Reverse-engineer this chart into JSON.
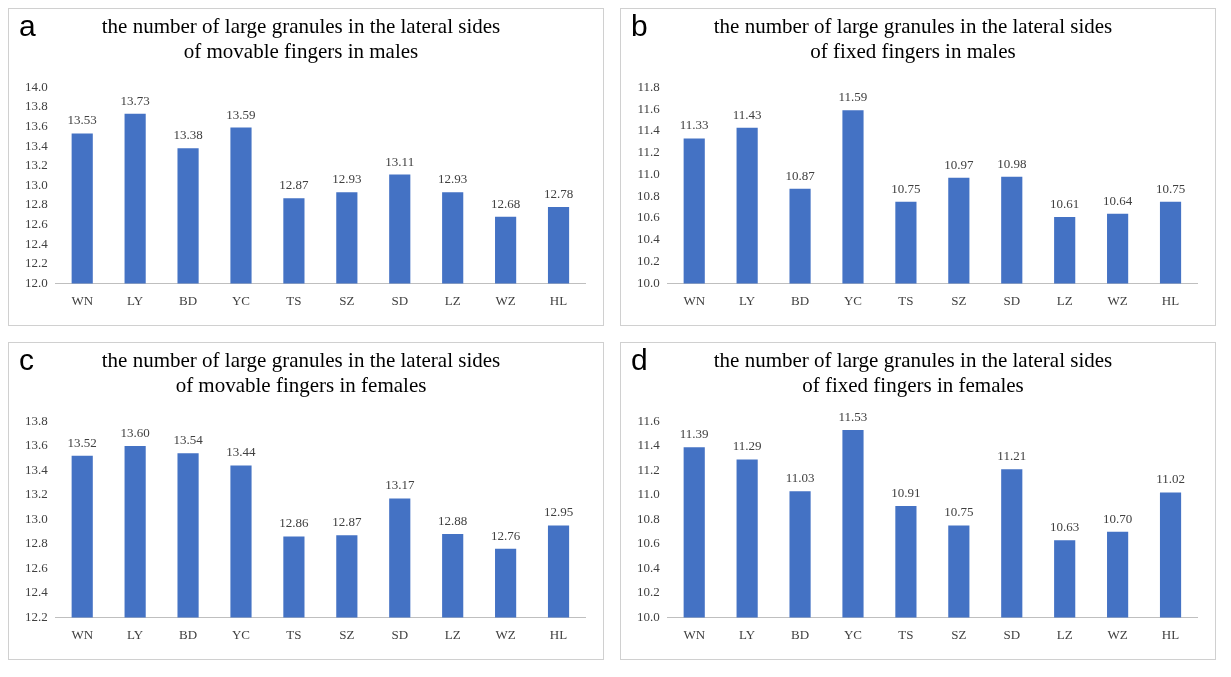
{
  "chart_data": [
    {
      "type": "bar",
      "title": "the number of large granules in the lateral sides\nof movable fingers in males",
      "annotations": [
        "a"
      ],
      "categories": [
        "WN",
        "LY",
        "BD",
        "YC",
        "TS",
        "SZ",
        "SD",
        "LZ",
        "WZ",
        "HL"
      ],
      "color": "#4472c4",
      "values": [
        13.53,
        13.73,
        13.38,
        13.59,
        12.87,
        12.93,
        13.11,
        12.93,
        12.68,
        12.78
      ],
      "value_labels": [
        "13.53",
        "13.73",
        "13.38",
        "13.59",
        "12.87",
        "12.93",
        "13.11",
        "12.93",
        "12.68",
        "12.78"
      ],
      "ylim": [
        12,
        14
      ],
      "yticks": [
        {
          "value": 12,
          "label": "12.0"
        },
        12.2,
        12.4,
        12.6,
        12.8,
        {
          "value": 13,
          "label": "13.0"
        },
        13.2,
        13.4,
        13.6,
        13.8,
        {
          "value": 14,
          "label": "14.0"
        }
      ],
      "grid": false,
      "legend": false
    },
    {
      "type": "bar",
      "title": "the number of large granules in the lateral sides\nof fixed fingers in males",
      "annotations": [
        "b"
      ],
      "categories": [
        "WN",
        "LY",
        "BD",
        "YC",
        "TS",
        "SZ",
        "SD",
        "LZ",
        "WZ",
        "HL"
      ],
      "color": "#4472c4",
      "values": [
        11.33,
        11.43,
        10.87,
        11.59,
        10.75,
        10.97,
        10.98,
        10.61,
        10.64,
        10.75
      ],
      "value_labels": [
        "11.33",
        "11.43",
        "10.87",
        "11.59",
        "10.75",
        "10.97",
        "10.98",
        "10.61",
        "10.64",
        "10.75"
      ],
      "ylim": [
        10,
        11.8
      ],
      "yticks": [
        {
          "value": 10,
          "label": "10.0"
        },
        10.2,
        10.4,
        10.6,
        10.8,
        {
          "value": 11,
          "label": "11.0"
        },
        11.2,
        11.4,
        11.6,
        11.8
      ],
      "grid": false,
      "legend": false
    },
    {
      "type": "bar",
      "title": "the number of large granules in the lateral sides\nof movable fingers in females",
      "annotations": [
        "c"
      ],
      "categories": [
        "WN",
        "LY",
        "BD",
        "YC",
        "TS",
        "SZ",
        "SD",
        "LZ",
        "WZ",
        "HL"
      ],
      "color": "#4472c4",
      "values": [
        13.52,
        13.6,
        13.54,
        13.44,
        12.86,
        12.87,
        13.17,
        12.88,
        12.76,
        12.95
      ],
      "value_labels": [
        "13.52",
        "13.60",
        "13.54",
        "13.44",
        "12.86",
        "12.87",
        "13.17",
        "12.88",
        "12.76",
        "12.95"
      ],
      "ylim": [
        12.2,
        13.8
      ],
      "yticks": [
        12.2,
        12.4,
        12.6,
        12.8,
        {
          "value": 13,
          "label": "13.0"
        },
        13.2,
        13.4,
        13.6,
        13.8
      ],
      "grid": false,
      "legend": false
    },
    {
      "type": "bar",
      "title": "the number of large granules in the lateral sides\nof fixed fingers in females",
      "annotations": [
        "d"
      ],
      "categories": [
        "WN",
        "LY",
        "BD",
        "YC",
        "TS",
        "SZ",
        "SD",
        "LZ",
        "WZ",
        "HL"
      ],
      "color": "#4472c4",
      "values": [
        11.39,
        11.29,
        11.03,
        11.53,
        10.91,
        10.75,
        11.21,
        10.63,
        10.7,
        11.02
      ],
      "value_labels": [
        "11.39",
        "11.29",
        "11.03",
        "11.53",
        "10.91",
        "10.75",
        "11.21",
        "10.63",
        "10.70",
        "11.02"
      ],
      "ylim": [
        10,
        11.6
      ],
      "yticks": [
        {
          "value": 10,
          "label": "10.0"
        },
        10.2,
        10.4,
        10.6,
        10.8,
        {
          "value": 11,
          "label": "11.0"
        },
        11.2,
        11.4,
        11.6
      ],
      "grid": false,
      "legend": false
    }
  ]
}
